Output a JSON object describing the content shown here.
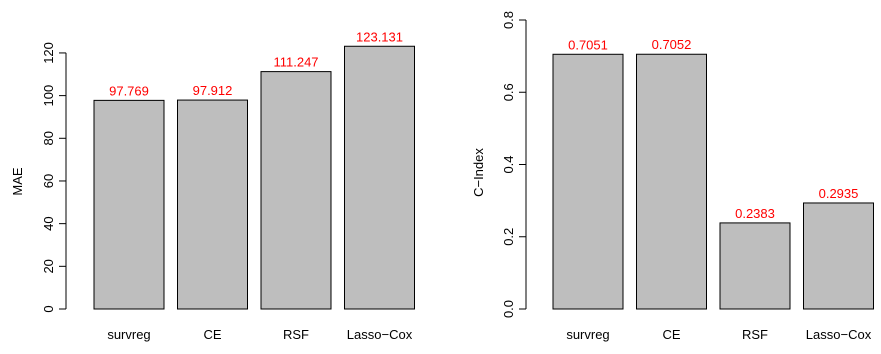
{
  "chart_data": [
    {
      "type": "bar",
      "categories": [
        "survreg",
        "CE",
        "RSF",
        "Lasso−Cox"
      ],
      "values": [
        97.769,
        97.912,
        111.247,
        123.131
      ],
      "value_labels": [
        "97.769",
        "97.912",
        "111.247",
        "123.131"
      ],
      "xlabel": "",
      "ylabel": "MAE",
      "ylim": [
        0,
        127
      ],
      "yticks": [
        0,
        20,
        40,
        60,
        80,
        100,
        120
      ],
      "ytick_labels": [
        "0",
        "20",
        "40",
        "60",
        "80",
        "100",
        "120"
      ],
      "bar_color": "#bebebe",
      "value_label_color": "#ff0000",
      "grid": false
    },
    {
      "type": "bar",
      "categories": [
        "survreg",
        "CE",
        "RSF",
        "Lasso−Cox"
      ],
      "values": [
        0.7051,
        0.7052,
        0.2383,
        0.2935
      ],
      "value_labels": [
        "0.7051",
        "0.7052",
        "0.2383",
        "0.2935"
      ],
      "xlabel": "",
      "ylabel": "C−Index",
      "ylim": [
        0,
        0.8
      ],
      "yticks": [
        0,
        0.2,
        0.4,
        0.6,
        0.8
      ],
      "ytick_labels": [
        "0.0",
        "0.2",
        "0.4",
        "0.6",
        "0.8"
      ],
      "bar_color": "#bebebe",
      "value_label_color": "#ff0000",
      "grid": false
    }
  ]
}
